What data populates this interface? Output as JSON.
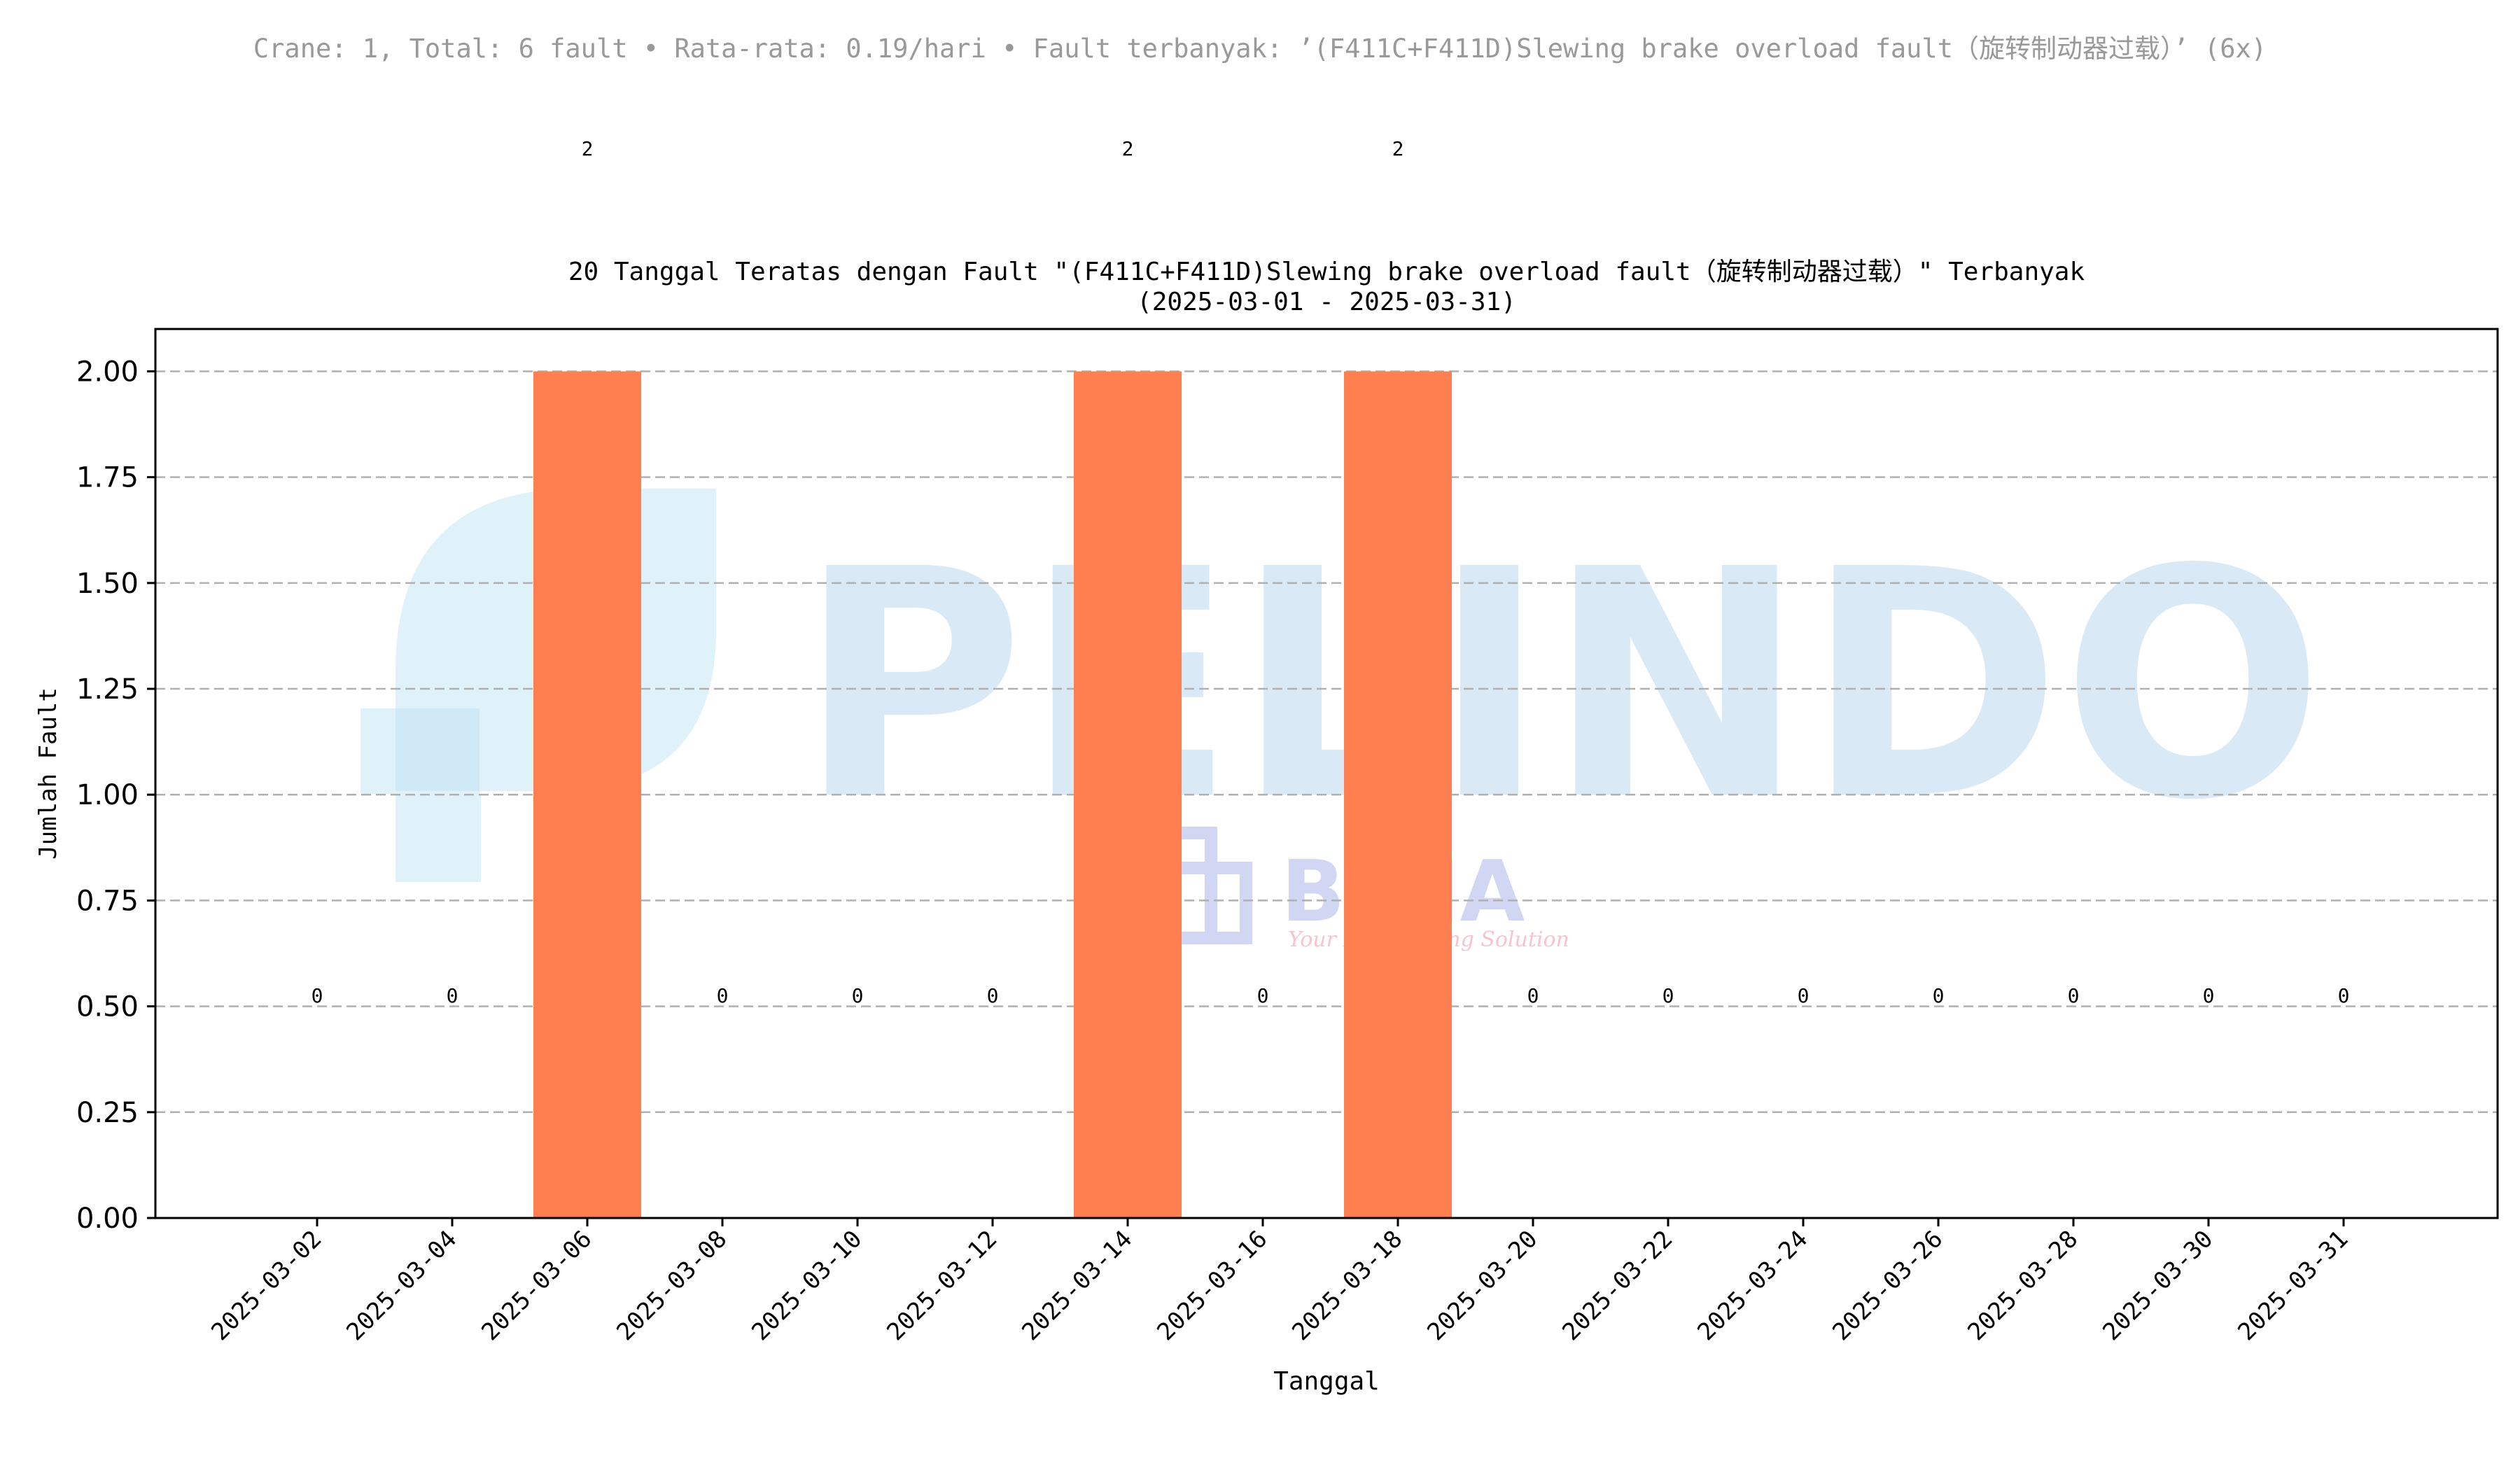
{
  "summary": "Crane: 1, Total: 6 fault • Rata-rata: 0.19/hari • Fault terbanyak: ’(F411C+F411D)Slewing brake overload fault（旋转制动器过载）’ (6x)",
  "colors": {
    "bar": "#ff7f50",
    "grid": "#b0b0b0",
    "summary_text": "#999999",
    "axis": "#000000",
    "watermark_pelindo": "#9ec8e6",
    "watermark_pelindo_light": "#bfe4f4",
    "watermark_bima": "#8f9de0",
    "watermark_bima_tagline": "#f28a9a"
  },
  "watermark": {
    "brand": "PELINDO",
    "sub_brand": "BIMA",
    "tagline": "Your Engineering Solution"
  },
  "chart_data": {
    "type": "bar",
    "title": "20 Tanggal Teratas dengan Fault \"(F411C+F411D)Slewing brake overload fault（旋转制动器过载）\" Terbanyak",
    "subtitle": "(2025-03-01 - 2025-03-31)",
    "xlabel": "Tanggal",
    "ylabel": "Jumlah Fault",
    "categories": [
      "2025-03-02",
      "2025-03-04",
      "2025-03-06",
      "2025-03-08",
      "2025-03-10",
      "2025-03-12",
      "2025-03-14",
      "2025-03-16",
      "2025-03-18",
      "2025-03-20",
      "2025-03-22",
      "2025-03-24",
      "2025-03-26",
      "2025-03-28",
      "2025-03-30",
      "2025-03-31"
    ],
    "values": [
      0,
      0,
      2,
      0,
      0,
      0,
      2,
      0,
      2,
      0,
      0,
      0,
      0,
      0,
      0,
      0
    ],
    "data_labels": [
      "0",
      "0",
      "2",
      "0",
      "0",
      "0",
      "2",
      "0",
      "2",
      "0",
      "0",
      "0",
      "0",
      "0",
      "0",
      "0"
    ],
    "ylim": [
      0,
      2.1
    ],
    "yticks": [
      "0.00",
      "0.25",
      "0.50",
      "0.75",
      "1.00",
      "1.25",
      "1.50",
      "1.75",
      "2.00"
    ],
    "grid": "horizontal dashed",
    "legend": "none"
  }
}
